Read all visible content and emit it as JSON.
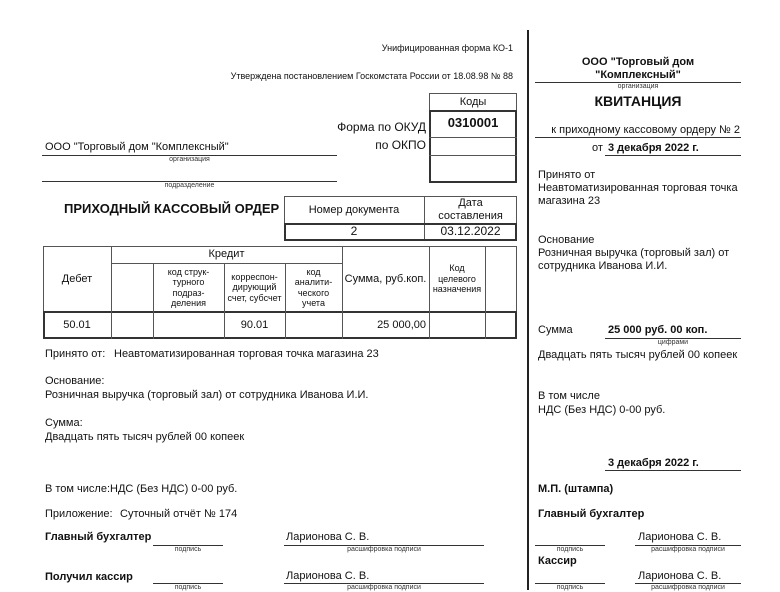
{
  "header": {
    "form_name": "Унифицированная форма КО-1",
    "approved": "Утверждена постановлением Госкомстата России от 18.08.98 № 88"
  },
  "codes": {
    "title": "Коды",
    "okud_label": "Форма по ОКУД",
    "okud_value": "0310001",
    "okpo_label": "по ОКПО",
    "okpo_value": ""
  },
  "order": {
    "organization": "ООО \"Торговый дом \"Комплексный\"",
    "organization_caption": "организация",
    "subdivision": "",
    "subdivision_caption": "подразделение",
    "title": "ПРИХОДНЫЙ КАССОВЫЙ ОРДЕР",
    "doc_number_label": "Номер документа",
    "doc_date_label": "Дата составления",
    "doc_number": "2",
    "doc_date": "03.12.2022",
    "table": {
      "debit": "Дебет",
      "credit": "Кредит",
      "credit_struct": "код струк-турного подраз-деления",
      "credit_account": "корреспон-дирующий счет, субсчет",
      "credit_analytic": "код аналити-ческого учета",
      "sum": "Сумма, руб.коп.",
      "purpose_code": "Код целевого назначения",
      "row": {
        "debit": "50.01",
        "credit_blank": "",
        "credit_struct": "",
        "credit_account": "90.01",
        "credit_analytic": "",
        "sum": "25 000,00",
        "purpose_code": "",
        "last": ""
      }
    },
    "received_from_label": "Принято от:",
    "received_from": "Неавтоматизированная торговая точка магазина 23",
    "basis_label": "Основание:",
    "basis": "Розничная выручка (торговый зал) от сотрудника Иванова И.И.",
    "sum_label": "Сумма:",
    "sum_words": "Двадцать пять тысяч рублей 00 копеек",
    "including_label": "В том числе:",
    "including": "НДС (Без НДС) 0-00 руб.",
    "attachment_label": "Приложение:",
    "attachment": "Суточный отчёт № 174",
    "chief_accountant_label": "Главный бухгалтер",
    "cashier_label": "Получил кассир",
    "signature_caption": "подпись",
    "decoding_caption": "расшифровка подписи",
    "chief_accountant_name": "Ларионова С. В.",
    "cashier_name": "Ларионова С. В."
  },
  "receipt": {
    "organization_line1": "ООО \"Торговый дом",
    "organization_line2": "\"Комплексный\"",
    "organization_caption": "организация",
    "title": "КВИТАНЦИЯ",
    "to_order": "к приходному кассовому ордеру № 2",
    "from_label": "от",
    "from_date": "3 декабря 2022 г.",
    "received_from_label": "Принято от",
    "received_from_line1": "Неавтоматизированная торговая точка",
    "received_from_line2": "магазина 23",
    "basis_label": "Основание",
    "basis_line1": "Розничная выручка (торговый зал) от",
    "basis_line2": "сотрудника Иванова И.И.",
    "sum_label": "Сумма",
    "sum_digits": "25 000 руб. 00 коп.",
    "digits_caption": "цифрами",
    "sum_words": "Двадцать пять тысяч рублей 00 копеек",
    "including_label": "В том числе",
    "including": "НДС (Без НДС) 0-00 руб.",
    "date": "3 декабря 2022 г.",
    "stamp": "М.П. (штампа)",
    "chief_accountant_label": "Главный бухгалтер",
    "chief_accountant_name": "Ларионова С. В.",
    "cashier_label": "Кассир",
    "cashier_name": "Ларионова С. В.",
    "signature_caption": "подпись",
    "decoding_caption": "расшифровка подписи"
  }
}
